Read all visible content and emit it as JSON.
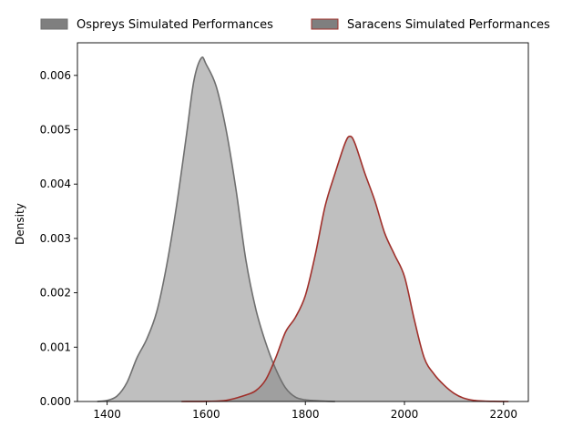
{
  "chart_data": {
    "type": "area",
    "title": "",
    "xlabel": "",
    "ylabel": "Density",
    "xlim": [
      1340,
      2250
    ],
    "ylim": [
      0,
      0.0066
    ],
    "grid": false,
    "legend_position": "top, above plot, horizontal",
    "x_ticks": [
      1400,
      1600,
      1800,
      2000,
      2200
    ],
    "x_tick_labels": [
      "1400",
      "1600",
      "1800",
      "2000",
      "2200"
    ],
    "y_ticks": [
      0,
      0.001,
      0.002,
      0.003,
      0.004,
      0.005,
      0.006
    ],
    "y_tick_labels": [
      "0.000",
      "0.001",
      "0.002",
      "0.003",
      "0.004",
      "0.005",
      "0.006"
    ],
    "series": [
      {
        "name": "Ospreys Simulated Performances",
        "color": "#6f6f6f",
        "fill": "#7f7f7f",
        "points": [
          [
            1380,
            0.0
          ],
          [
            1400,
            2e-05
          ],
          [
            1420,
            0.0001
          ],
          [
            1440,
            0.00035
          ],
          [
            1460,
            0.0008
          ],
          [
            1480,
            0.00115
          ],
          [
            1500,
            0.00165
          ],
          [
            1520,
            0.0025
          ],
          [
            1540,
            0.0036
          ],
          [
            1560,
            0.0049
          ],
          [
            1575,
            0.0059
          ],
          [
            1590,
            0.00632
          ],
          [
            1600,
            0.0062
          ],
          [
            1620,
            0.0058
          ],
          [
            1640,
            0.005
          ],
          [
            1660,
            0.0039
          ],
          [
            1680,
            0.0026
          ],
          [
            1700,
            0.0017
          ],
          [
            1720,
            0.00108
          ],
          [
            1740,
            0.0006
          ],
          [
            1760,
            0.00025
          ],
          [
            1780,
            8e-05
          ],
          [
            1800,
            3e-05
          ],
          [
            1820,
            1.5e-05
          ],
          [
            1840,
            5e-06
          ],
          [
            1860,
            0.0
          ]
        ]
      },
      {
        "name": "Saracens Simulated Performances",
        "color": "#a0302b",
        "fill": "#7f7f7f",
        "points": [
          [
            1550,
            0.0
          ],
          [
            1600,
            3e-06
          ],
          [
            1640,
            2e-05
          ],
          [
            1680,
            0.00012
          ],
          [
            1700,
            0.0002
          ],
          [
            1720,
            0.0004
          ],
          [
            1740,
            0.0008
          ],
          [
            1760,
            0.00128
          ],
          [
            1780,
            0.00155
          ],
          [
            1800,
            0.00195
          ],
          [
            1820,
            0.0027
          ],
          [
            1840,
            0.0036
          ],
          [
            1860,
            0.0042
          ],
          [
            1880,
            0.00475
          ],
          [
            1890,
            0.00488
          ],
          [
            1900,
            0.00475
          ],
          [
            1920,
            0.0042
          ],
          [
            1940,
            0.0037
          ],
          [
            1960,
            0.0031
          ],
          [
            1980,
            0.0027
          ],
          [
            2000,
            0.0023
          ],
          [
            2020,
            0.0015
          ],
          [
            2040,
            0.0008
          ],
          [
            2060,
            0.0005
          ],
          [
            2080,
            0.0003
          ],
          [
            2100,
            0.00015
          ],
          [
            2120,
            6e-05
          ],
          [
            2140,
            2e-05
          ],
          [
            2160,
            8e-06
          ],
          [
            2180,
            3e-06
          ],
          [
            2210,
            0.0
          ]
        ]
      }
    ]
  }
}
